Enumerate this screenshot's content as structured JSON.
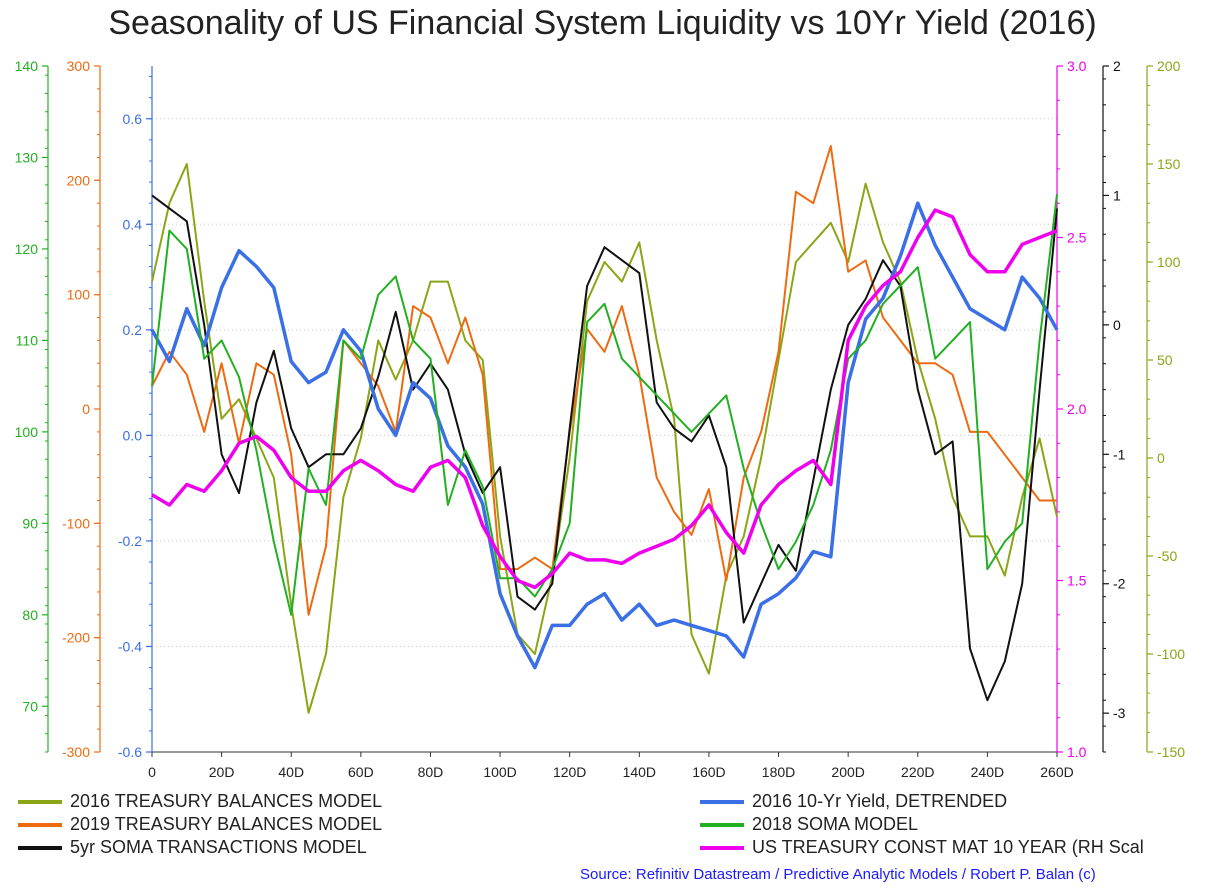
{
  "chart_data": {
    "type": "line",
    "title": "Seasonality of US Financial System Liquidity vs 10Yr Yield (2016)",
    "source": "Source: Refinitiv Datastream / Predictive Analytic Models / Robert P. Balan (c)",
    "x_ticks": [
      "0",
      "20D",
      "40D",
      "60D",
      "80D",
      "100D",
      "120D",
      "140D",
      "160D",
      "180D",
      "200D",
      "220D",
      "240D",
      "260D"
    ],
    "xlim": [
      0,
      260
    ],
    "grid": true,
    "legend_position": "bottom",
    "axes": {
      "soma2018": {
        "side": "left",
        "color": "#22b022",
        "range": [
          65,
          140
        ],
        "ticks": [
          70,
          80,
          90,
          100,
          110,
          120,
          130,
          140
        ]
      },
      "tb2019": {
        "side": "left",
        "color": "#ee6a10",
        "range": [
          -300,
          300
        ],
        "ticks": [
          -300,
          -200,
          -100,
          0,
          100,
          200,
          300
        ]
      },
      "yield_detrended": {
        "side": "left",
        "color": "#3a6fe6",
        "range": [
          -0.6,
          0.7
        ],
        "ticks": [
          -0.6,
          -0.4,
          -0.2,
          0.0,
          0.2,
          0.4,
          0.6
        ]
      },
      "ust10y": {
        "side": "right",
        "color": "#ee00ee",
        "range": [
          1.0,
          3.0
        ],
        "ticks": [
          1.0,
          1.5,
          2.0,
          2.5,
          3.0
        ]
      },
      "soma5yr": {
        "side": "right",
        "color": "#111111",
        "range": [
          -3.3,
          2.0
        ],
        "ticks": [
          -3,
          -2,
          -1,
          0,
          1,
          2
        ]
      },
      "tb2016": {
        "side": "right",
        "color": "#8aa616",
        "range": [
          -150,
          200
        ],
        "ticks": [
          -150,
          -100,
          -50,
          0,
          50,
          100,
          150,
          200
        ]
      }
    },
    "x": [
      0,
      5,
      10,
      15,
      20,
      25,
      30,
      35,
      40,
      45,
      50,
      55,
      60,
      65,
      70,
      75,
      80,
      85,
      90,
      95,
      100,
      105,
      110,
      115,
      120,
      125,
      130,
      135,
      140,
      145,
      150,
      155,
      160,
      165,
      170,
      175,
      180,
      185,
      190,
      195,
      200,
      205,
      210,
      215,
      220,
      225,
      230,
      235,
      240,
      245,
      250,
      255,
      260
    ],
    "series": [
      {
        "name": "2016 TREASURY BALANCES MODEL",
        "axis": "tb2016",
        "color": "#8aa616",
        "values": [
          90,
          130,
          150,
          80,
          20,
          30,
          10,
          -10,
          -75,
          -130,
          -100,
          -20,
          10,
          60,
          40,
          60,
          90,
          90,
          60,
          50,
          -40,
          -90,
          -100,
          -60,
          0,
          80,
          100,
          90,
          110,
          60,
          20,
          -90,
          -110,
          -60,
          -40,
          0,
          50,
          100,
          110,
          120,
          100,
          140,
          110,
          90,
          50,
          20,
          -20,
          -40,
          -40,
          -60,
          -20,
          10,
          -30
        ]
      },
      {
        "name": "2019 TREASURY BALANCES MODEL",
        "axis": "tb2019",
        "color": "#ee6a10",
        "values": [
          20,
          50,
          30,
          -20,
          40,
          -30,
          40,
          30,
          -40,
          -180,
          -120,
          60,
          40,
          20,
          -20,
          90,
          80,
          40,
          80,
          30,
          -140,
          -140,
          -130,
          -140,
          -20,
          70,
          50,
          90,
          30,
          -60,
          -90,
          -110,
          -70,
          -150,
          -60,
          -20,
          50,
          190,
          180,
          230,
          120,
          130,
          80,
          60,
          40,
          40,
          30,
          -20,
          -20,
          -40,
          -60,
          -80,
          -80
        ]
      },
      {
        "name": "5yr SOMA TRANSACTIONS MODEL",
        "axis": "soma5yr",
        "color": "#111111",
        "values": [
          1.0,
          0.9,
          0.8,
          0.0,
          -1.0,
          -1.3,
          -0.6,
          -0.2,
          -0.8,
          -1.1,
          -1.0,
          -1.0,
          -0.8,
          -0.4,
          0.1,
          -0.5,
          -0.3,
          -0.5,
          -1.0,
          -1.3,
          -1.1,
          -2.1,
          -2.2,
          -2.0,
          -0.8,
          0.3,
          0.6,
          0.5,
          0.4,
          -0.6,
          -0.8,
          -0.9,
          -0.7,
          -1.1,
          -2.3,
          -2.0,
          -1.7,
          -1.9,
          -1.2,
          -0.5,
          0.0,
          0.2,
          0.5,
          0.3,
          -0.5,
          -1.0,
          -0.9,
          -2.5,
          -2.9,
          -2.6,
          -2.0,
          -0.5,
          0.9
        ]
      },
      {
        "name": "2016 10-Yr Yield, DETRENDED",
        "axis": "yield_detrended",
        "color": "#3a6fe6",
        "values": [
          0.2,
          0.14,
          0.24,
          0.17,
          0.28,
          0.35,
          0.32,
          0.28,
          0.14,
          0.1,
          0.12,
          0.2,
          0.16,
          0.05,
          0.0,
          0.1,
          0.07,
          -0.02,
          -0.06,
          -0.13,
          -0.3,
          -0.38,
          -0.44,
          -0.36,
          -0.36,
          -0.32,
          -0.3,
          -0.35,
          -0.32,
          -0.36,
          -0.35,
          -0.36,
          -0.37,
          -0.38,
          -0.42,
          -0.32,
          -0.3,
          -0.27,
          -0.22,
          -0.23,
          0.1,
          0.22,
          0.26,
          0.34,
          0.44,
          0.36,
          0.3,
          0.24,
          0.22,
          0.2,
          0.3,
          0.26,
          0.2
        ]
      },
      {
        "name": "2018 SOMA MODEL",
        "axis": "soma2018",
        "color": "#22b022",
        "values": [
          105,
          122,
          120,
          108,
          110,
          106,
          98,
          88,
          80,
          96,
          92,
          110,
          108,
          115,
          117,
          110,
          108,
          92,
          98,
          94,
          84,
          84,
          82,
          85,
          90,
          112,
          114,
          108,
          106,
          104,
          102,
          100,
          102,
          104,
          96,
          90,
          85,
          88,
          92,
          98,
          108,
          110,
          114,
          116,
          118,
          108,
          110,
          112,
          85,
          88,
          90,
          110,
          126
        ]
      },
      {
        "name": "US TREASURY CONST MAT 10 YEAR (RH Scal",
        "axis": "ust10y",
        "color": "#ee00ee",
        "values": [
          1.75,
          1.72,
          1.78,
          1.76,
          1.82,
          1.9,
          1.92,
          1.88,
          1.8,
          1.76,
          1.76,
          1.82,
          1.85,
          1.82,
          1.78,
          1.76,
          1.83,
          1.85,
          1.8,
          1.66,
          1.57,
          1.5,
          1.48,
          1.52,
          1.58,
          1.56,
          1.56,
          1.55,
          1.58,
          1.6,
          1.62,
          1.66,
          1.72,
          1.64,
          1.58,
          1.72,
          1.78,
          1.82,
          1.85,
          1.78,
          2.2,
          2.3,
          2.36,
          2.4,
          2.5,
          2.58,
          2.56,
          2.45,
          2.4,
          2.4,
          2.48,
          2.5,
          2.52
        ]
      }
    ]
  }
}
